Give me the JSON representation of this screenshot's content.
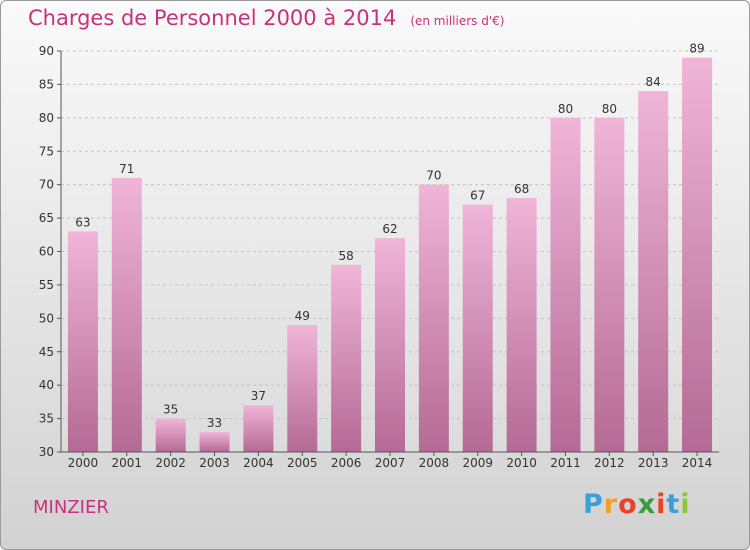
{
  "title": "Charges de Personnel 2000 à 2014",
  "subtitle": "(en milliers d'€)",
  "commune": "MINZIER",
  "logo": {
    "letters": [
      "P",
      "r",
      "o",
      "x",
      "i",
      "t",
      "i"
    ],
    "colors": [
      "#3aa0d8",
      "#f2a126",
      "#e8432a",
      "#3a9b3c",
      "#e8432a",
      "#3aa0d8",
      "#8cc63f"
    ]
  },
  "colors": {
    "bar_light": "#f0b5d8",
    "bar_dark": "#b46a94",
    "accent": "#c8317c"
  },
  "chart_data": {
    "type": "bar",
    "categories": [
      "2000",
      "2001",
      "2002",
      "2003",
      "2004",
      "2005",
      "2006",
      "2007",
      "2008",
      "2009",
      "2010",
      "2011",
      "2012",
      "2013",
      "2014"
    ],
    "values": [
      63,
      71,
      35,
      33,
      37,
      49,
      58,
      62,
      70,
      67,
      68,
      80,
      80,
      84,
      89
    ],
    "ylim": [
      30,
      90
    ],
    "yticks": [
      30,
      35,
      40,
      45,
      50,
      55,
      60,
      65,
      70,
      75,
      80,
      85,
      90
    ],
    "grid": true
  }
}
